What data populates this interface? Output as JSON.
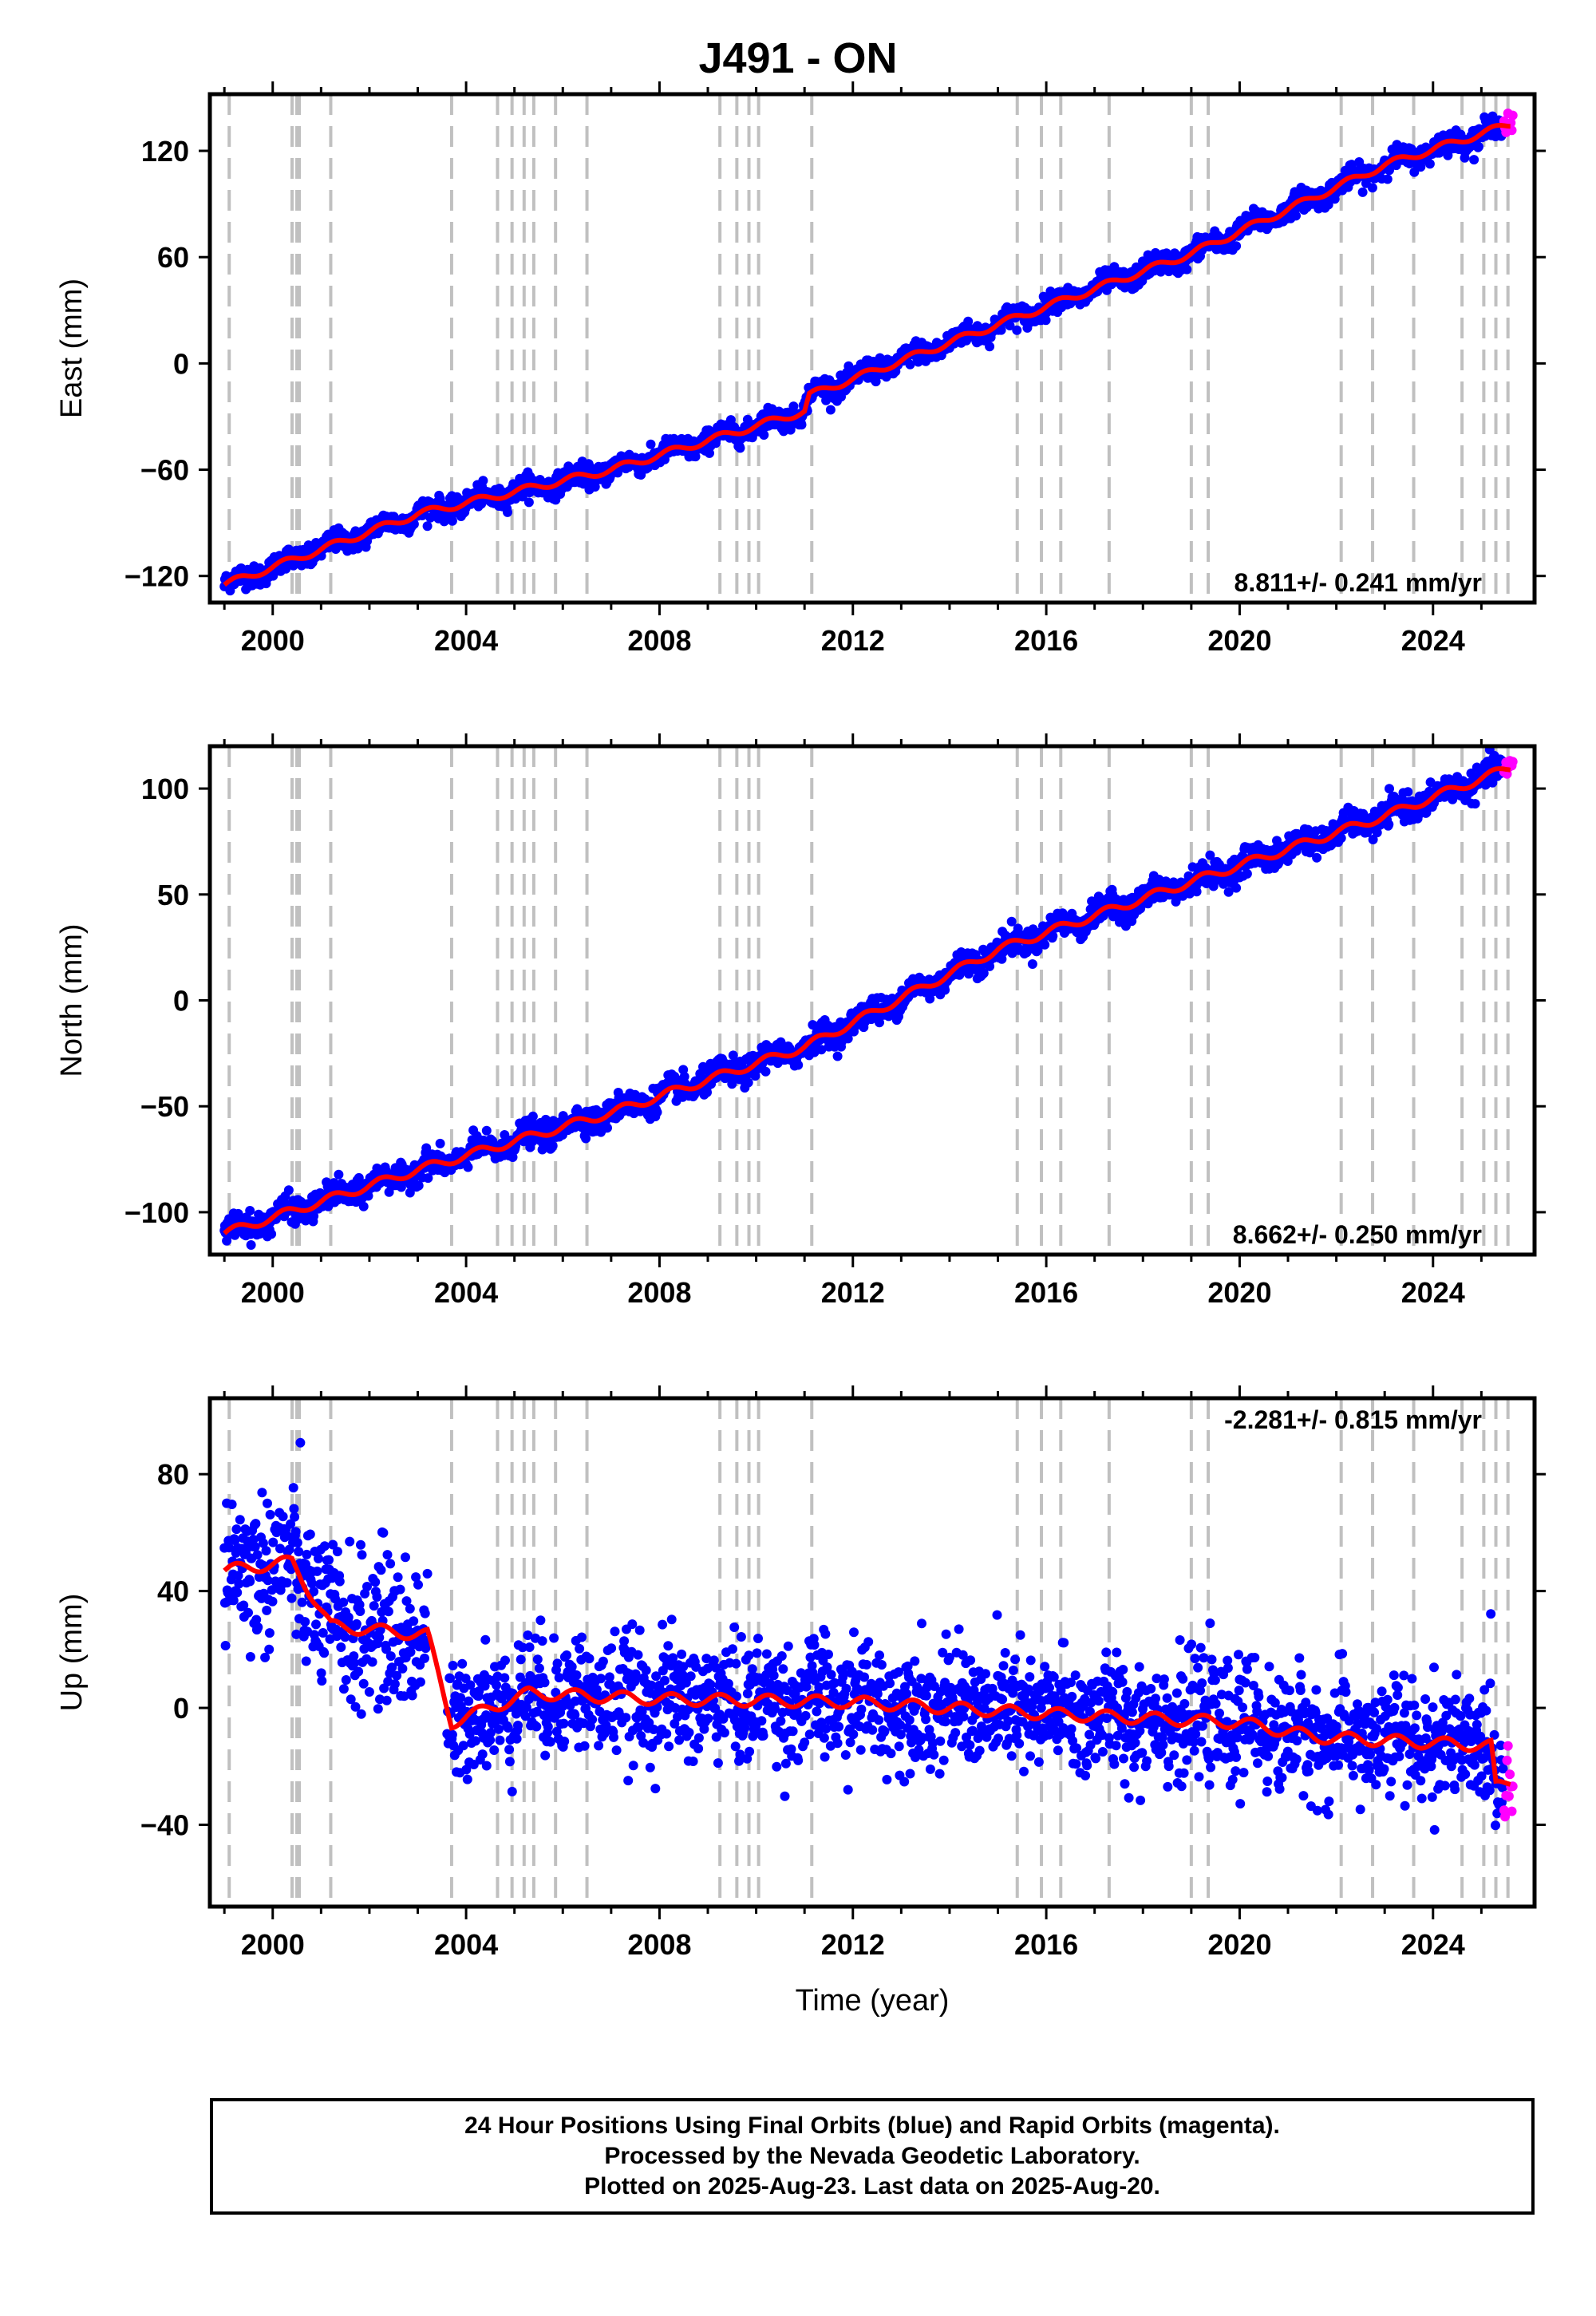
{
  "title": "J491 - ON",
  "chart_data": [
    {
      "type": "scatter",
      "ylabel": "East (mm)",
      "xlim": [
        1998.7,
        2026.1
      ],
      "ylim": [
        -135,
        152
      ],
      "yticks": [
        -120,
        -60,
        0,
        60,
        120
      ],
      "xticks": [
        2000,
        2004,
        2008,
        2012,
        2016,
        2020,
        2024
      ],
      "rate_label": "8.811+/- 0.241 mm/yr",
      "rate_position": "bottom-right",
      "model": {
        "x": [
          1999.0,
          2003.0,
          2007.0,
          2011.0,
          2011.1,
          2015.0,
          2019.0,
          2023.0,
          2025.6
        ],
        "y": [
          -125,
          -85,
          -60,
          -27,
          -18,
          22,
          62,
          112,
          135
        ]
      },
      "noise_mm": 3,
      "series": [
        {
          "color": "#0000ff"
        },
        {
          "color": "#ff00ff"
        },
        {
          "color": "#ff0000"
        }
      ]
    },
    {
      "type": "scatter",
      "ylabel": "North (mm)",
      "xlim": [
        1998.7,
        2026.1
      ],
      "ylim": [
        -120,
        120
      ],
      "yticks": [
        -100,
        -50,
        0,
        50,
        100
      ],
      "xticks": [
        2000,
        2004,
        2008,
        2012,
        2016,
        2020,
        2024
      ],
      "rate_label": "8.662+/- 0.250 mm/yr",
      "rate_position": "bottom-right",
      "model": {
        "x": [
          1999.0,
          2003.0,
          2007.0,
          2011.0,
          2015.0,
          2019.0,
          2023.0,
          2025.6
        ],
        "y": [
          -110,
          -80,
          -53,
          -22,
          24,
          56,
          87,
          110
        ]
      },
      "noise_mm": 3,
      "series": [
        {
          "color": "#0000ff"
        },
        {
          "color": "#ff00ff"
        },
        {
          "color": "#ff0000"
        }
      ]
    },
    {
      "type": "scatter",
      "ylabel": "Up (mm)",
      "xlabel": "Time (year)",
      "xlim": [
        1998.7,
        2026.1
      ],
      "ylim": [
        -68,
        106
      ],
      "yticks": [
        -40,
        0,
        40,
        80
      ],
      "xticks": [
        2000,
        2004,
        2008,
        2012,
        2016,
        2020,
        2024
      ],
      "rate_label": "-2.281+/- 0.815 mm/yr",
      "rate_position": "top-right",
      "model": {
        "x": [
          1999.0,
          2000.4,
          2001.2,
          2003.2,
          2003.7,
          2005.3,
          2008.0,
          2012.0,
          2016.0,
          2020.0,
          2021.6,
          2025.2,
          2025.3,
          2025.6
        ],
        "y": [
          47,
          50,
          28,
          25,
          -5,
          5,
          3,
          2,
          -2,
          -5,
          -10,
          -13,
          -27,
          -25
        ]
      },
      "noise_mm": 10,
      "series": [
        {
          "color": "#0000ff"
        },
        {
          "color": "#ff00ff"
        },
        {
          "color": "#ff0000"
        }
      ]
    }
  ],
  "equipment_change_years": [
    1999.1,
    2000.4,
    2000.5,
    2000.55,
    2001.2,
    2003.7,
    2004.65,
    2004.95,
    2005.2,
    2005.4,
    2005.85,
    2006.5,
    2009.25,
    2009.6,
    2009.85,
    2010.05,
    2011.15,
    2015.4,
    2015.9,
    2016.3,
    2017.3,
    2019.0,
    2019.35,
    2022.1,
    2022.75,
    2023.6,
    2024.6,
    2025.05,
    2025.3,
    2025.55
  ],
  "footer": {
    "line1": "24 Hour Positions Using Final Orbits (blue) and Rapid Orbits (magenta).",
    "line2": "Processed by the Nevada Geodetic Laboratory.",
    "line3": "Plotted on 2025-Aug-23. Last data on 2025-Aug-20."
  }
}
